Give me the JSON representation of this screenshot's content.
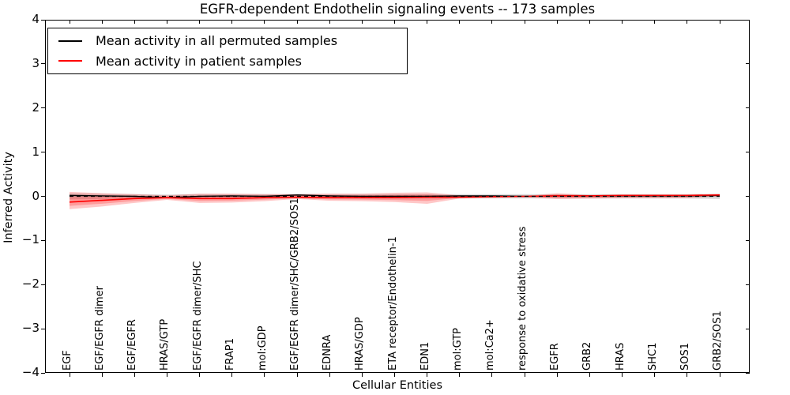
{
  "title": "EGFR-dependent Endothelin signaling events -- 173 samples",
  "legend": {
    "items": [
      {
        "label": "Mean activity in all permuted samples",
        "color": "#000000"
      },
      {
        "label": "Mean activity in patient samples",
        "color": "#ff0000"
      }
    ],
    "position": "upper left"
  },
  "axes": {
    "xlabel": "Cellular Entities",
    "ylabel": "Inferred Activity",
    "yticks": [
      "4",
      "3",
      "2",
      "1",
      "0",
      "−1",
      "−2",
      "−3",
      "−4"
    ],
    "ytick_values": [
      4,
      3,
      2,
      1,
      0,
      -1,
      -2,
      -3,
      -4
    ],
    "ylim": [
      -4,
      4
    ]
  },
  "chart_data": {
    "type": "line",
    "title": "EGFR-dependent Endothelin signaling events -- 173 samples",
    "xlabel": "Cellular Entities",
    "ylabel": "Inferred Activity",
    "ylim": [
      -4,
      4
    ],
    "grid": false,
    "legend_position": "upper left",
    "categories": [
      "EGF",
      "EGF/EGFR dimer",
      "EGF/EGFR",
      "HRAS/GTP",
      "EGF/EGFR dimer/SHC",
      "FRAP1",
      "mol:GDP",
      "EGF/EGFR dimer/SHC/GRB2/SOS1",
      "EDNRA",
      "HRAS/GDP",
      "ETA receptor/Endothelin-1",
      "EDN1",
      "mol:GTP",
      "mol:Ca2+",
      "response to oxidative stress",
      "EGFR",
      "GRB2",
      "HRAS",
      "SHC1",
      "SOS1",
      "GRB2/SOS1"
    ],
    "series": [
      {
        "name": "Mean activity in all permuted samples",
        "color": "#000000",
        "values": [
          0.02,
          0.01,
          0.0,
          -0.03,
          0.0,
          0.01,
          0.0,
          0.03,
          0.01,
          0.0,
          0.0,
          0.0,
          0.01,
          0.01,
          0.0,
          0.01,
          0.01,
          0.01,
          0.01,
          0.01,
          0.02
        ]
      },
      {
        "name": "Mean activity in patient samples",
        "color": "#ff0000",
        "values": [
          -0.13,
          -0.09,
          -0.05,
          -0.03,
          -0.05,
          -0.05,
          -0.03,
          -0.02,
          -0.03,
          -0.03,
          -0.03,
          -0.02,
          -0.02,
          -0.01,
          0.0,
          0.01,
          0.01,
          0.02,
          0.02,
          0.02,
          0.03
        ]
      }
    ],
    "bands": [
      {
        "name": "permuted-samples-std-band",
        "color": "#000000",
        "opacity": 0.15,
        "upper": [
          0.07,
          0.06,
          0.05,
          0.04,
          0.05,
          0.05,
          0.05,
          0.05,
          0.05,
          0.05,
          0.05,
          0.05,
          0.05,
          0.05,
          0.05,
          0.05,
          0.05,
          0.05,
          0.05,
          0.05,
          0.06
        ],
        "lower": [
          -0.07,
          -0.06,
          -0.05,
          -0.04,
          -0.05,
          -0.05,
          -0.05,
          -0.05,
          -0.05,
          -0.05,
          -0.05,
          -0.05,
          -0.05,
          -0.05,
          -0.05,
          -0.05,
          -0.05,
          -0.05,
          -0.05,
          -0.05,
          -0.06
        ]
      },
      {
        "name": "patient-samples-std-band",
        "color": "#ff0000",
        "opacity": 0.22,
        "upper": [
          0.1,
          0.07,
          0.05,
          0.02,
          0.06,
          0.06,
          0.05,
          0.05,
          0.06,
          0.06,
          0.08,
          0.09,
          0.02,
          0.01,
          0.01,
          0.07,
          0.03,
          0.04,
          0.04,
          0.04,
          0.05
        ],
        "lower": [
          -0.29,
          -0.23,
          -0.15,
          -0.08,
          -0.15,
          -0.14,
          -0.11,
          -0.06,
          -0.1,
          -0.11,
          -0.13,
          -0.17,
          -0.05,
          -0.03,
          -0.02,
          -0.06,
          -0.05,
          -0.04,
          -0.04,
          -0.04,
          0.0
        ]
      }
    ],
    "zero_line": {
      "y": 0,
      "style": "dashed",
      "color": "#000000"
    },
    "n_samples": "173"
  }
}
